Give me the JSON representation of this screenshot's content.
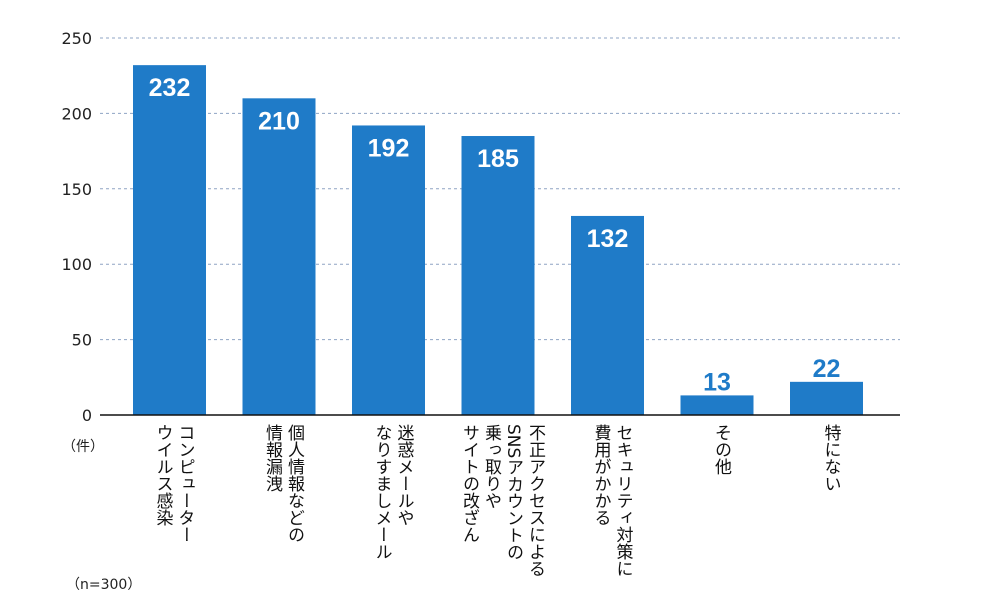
{
  "chart_data": {
    "type": "bar",
    "categories": [
      [
        "コンピューター",
        "ウイルス感染"
      ],
      [
        "個人情報などの",
        "情報漏洩"
      ],
      [
        "迷惑メールや",
        "なりすましメール"
      ],
      [
        "不正アクセスによる",
        "SNSアカウントの",
        "乗っ取りや",
        "サイトの改ざん"
      ],
      [
        "セキュリティ対策に",
        "費用がかかる"
      ],
      [
        "その他"
      ],
      [
        "特にない"
      ]
    ],
    "values": [
      232,
      210,
      192,
      185,
      132,
      13,
      22
    ],
    "ylim": [
      0,
      250
    ],
    "yticks": [
      0,
      50,
      100,
      150,
      200,
      250
    ],
    "ylabel": "（件）",
    "note": "（n=300）",
    "grid": true,
    "bar_color": "#1f7bc8",
    "label_color_inside": "#ffffff"
  }
}
